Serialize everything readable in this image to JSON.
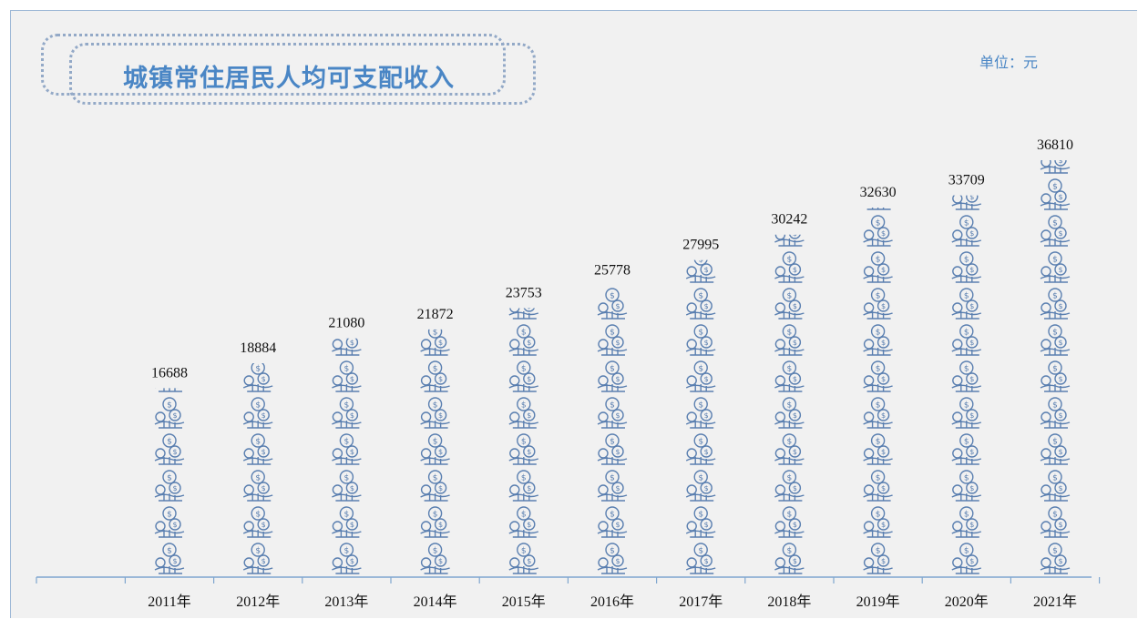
{
  "header": {
    "title": "城镇常住居民人均可支配收入",
    "unit": "单位：元"
  },
  "colors": {
    "background": "#f1f1f1",
    "accent": "#4a86c5",
    "icon": "#5a7fb0",
    "axis": "#7fa6cf"
  },
  "icons": {
    "bar_unit": "money-bag-icon"
  },
  "chart_data": {
    "type": "bar",
    "title": "城镇常住居民人均可支配收入",
    "unit": "单位：元",
    "xlabel": "",
    "ylabel": "",
    "categories": [
      "2011年",
      "2012年",
      "2013年",
      "2014年",
      "2015年",
      "2016年",
      "2017年",
      "2018年",
      "2019年",
      "2020年",
      "2021年"
    ],
    "values": [
      16688,
      18884,
      21080,
      21872,
      23753,
      25778,
      27995,
      30242,
      32630,
      33709,
      36810
    ],
    "grid": false
  }
}
